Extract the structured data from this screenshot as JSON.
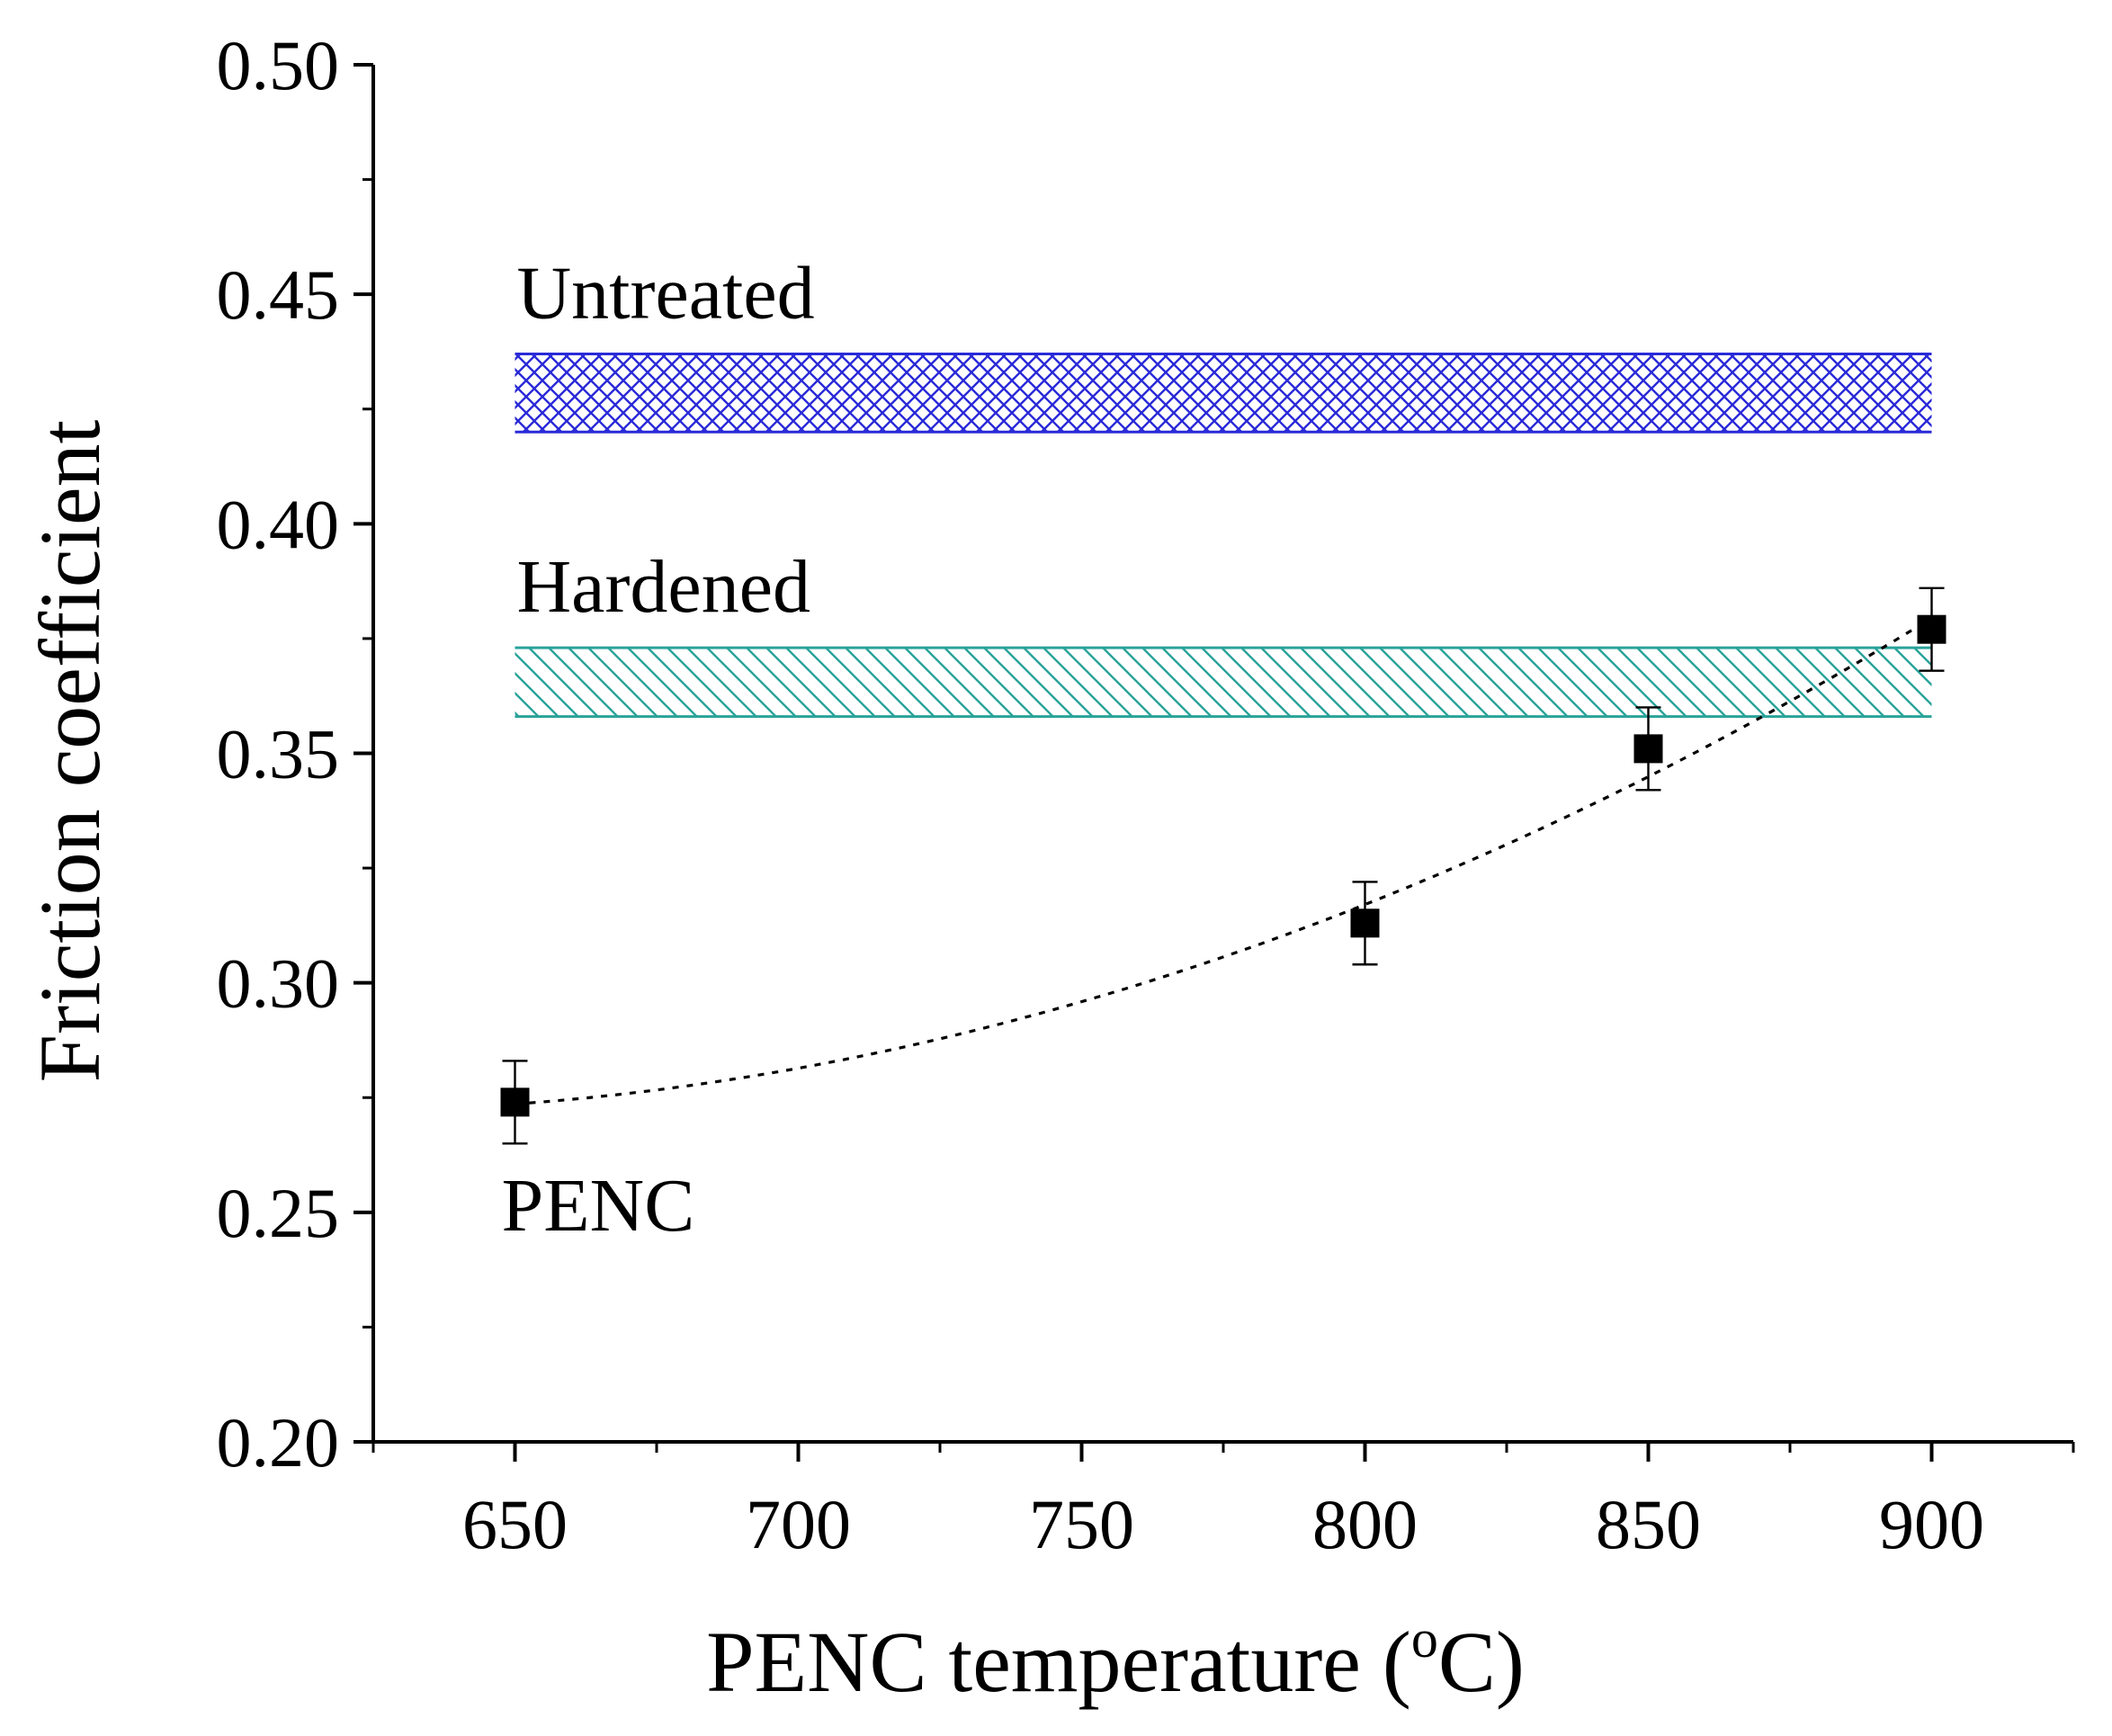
{
  "chart_data": {
    "type": "scatter",
    "xlabel": "PENC temperature (",
    "xlabel_sup": "o",
    "xlabel_end": "C)",
    "ylabel": "Friction coefficient",
    "xlim": [
      625,
      925
    ],
    "ylim": [
      0.2,
      0.5
    ],
    "x_ticks": [
      650,
      700,
      750,
      800,
      850,
      900
    ],
    "x_tick_labels": [
      "650",
      "700",
      "750",
      "800",
      "850",
      "900"
    ],
    "y_ticks": [
      0.2,
      0.25,
      0.3,
      0.35,
      0.4,
      0.45,
      0.5
    ],
    "y_tick_labels": [
      "0.20",
      "0.25",
      "0.30",
      "0.35",
      "0.40",
      "0.45",
      "0.50"
    ],
    "grid": false,
    "series": [
      {
        "name": "PENC",
        "x": [
          650,
          800,
          850,
          900
        ],
        "y": [
          0.274,
          0.313,
          0.351,
          0.377
        ],
        "error": [
          0.009,
          0.009,
          0.009,
          0.009
        ],
        "marker": "square",
        "color": "#000000",
        "trendline": "dotted"
      }
    ],
    "bands": [
      {
        "label": "Untreated",
        "x": [
          650,
          900
        ],
        "y": [
          0.42,
          0.437
        ],
        "color": "#2a2ad8",
        "pattern": "crosshatch"
      },
      {
        "label": "Hardened",
        "x": [
          650,
          900
        ],
        "y": [
          0.358,
          0.373
        ],
        "color": "#2aa39a",
        "pattern": "diagonal"
      }
    ]
  }
}
